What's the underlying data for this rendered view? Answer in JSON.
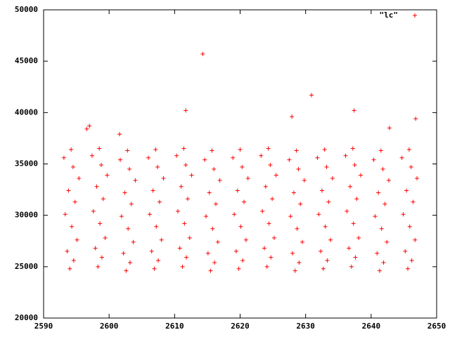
{
  "chart_data": {
    "type": "scatter",
    "x": [
      2594.0,
      2594.6,
      2593.6,
      2595.1,
      2594.3,
      2593.3,
      2594.8,
      2593.8,
      2595.4,
      2594.5,
      2593.1,
      2594.2,
      2598.3,
      2598.9,
      2597.9,
      2599.4,
      2598.6,
      2597.6,
      2599.1,
      2598.1,
      2599.7,
      2598.8,
      2597.4,
      2598.5,
      2602.6,
      2603.2,
      2602.2,
      2603.7,
      2602.9,
      2601.9,
      2603.4,
      2602.4,
      2604.0,
      2603.1,
      2601.7,
      2602.8,
      2606.9,
      2607.5,
      2606.5,
      2608.0,
      2607.2,
      2606.2,
      2607.7,
      2606.7,
      2608.3,
      2607.4,
      2606.0,
      2607.1,
      2611.2,
      2611.8,
      2610.8,
      2612.3,
      2611.5,
      2610.5,
      2612.0,
      2611.0,
      2612.6,
      2611.7,
      2610.3,
      2611.4,
      2615.5,
      2616.1,
      2615.1,
      2616.6,
      2615.8,
      2614.8,
      2616.3,
      2615.3,
      2616.9,
      2616.0,
      2614.6,
      2615.7,
      2619.8,
      2620.4,
      2619.4,
      2620.9,
      2620.1,
      2619.1,
      2620.6,
      2619.6,
      2621.2,
      2620.3,
      2618.9,
      2620.0,
      2624.1,
      2624.7,
      2623.7,
      2625.2,
      2624.4,
      2623.4,
      2624.9,
      2623.9,
      2625.5,
      2624.6,
      2623.2,
      2624.3,
      2628.4,
      2629.0,
      2628.0,
      2629.5,
      2628.7,
      2627.7,
      2629.2,
      2628.2,
      2629.8,
      2628.9,
      2627.5,
      2628.6,
      2632.7,
      2633.3,
      2632.3,
      2633.8,
      2633.0,
      2632.0,
      2633.5,
      2632.5,
      2634.1,
      2633.2,
      2631.8,
      2632.9,
      2637.0,
      2637.6,
      2636.6,
      2638.1,
      2637.3,
      2636.3,
      2637.8,
      2636.8,
      2638.4,
      2637.5,
      2636.1,
      2637.2,
      2641.3,
      2641.9,
      2640.9,
      2642.4,
      2641.6,
      2640.6,
      2642.1,
      2641.1,
      2642.7,
      2641.8,
      2640.4,
      2641.5,
      2645.6,
      2646.2,
      2645.2,
      2646.7,
      2645.9,
      2644.9,
      2646.4,
      2645.4,
      2647.0,
      2646.1,
      2644.7,
      2645.8,
      2614.3,
      2611.7,
      2630.9,
      2627.9,
      2637.4,
      2646.8,
      2642.8,
      2596.6,
      2597.0,
      2601.6
    ],
    "series": [
      {
        "name": "\"lc\"",
        "color": "#ff0000",
        "values": [
          24800,
          25600,
          26500,
          27600,
          28900,
          30100,
          31300,
          32400,
          33600,
          34700,
          35600,
          36400,
          25000,
          25900,
          26800,
          27800,
          29200,
          30400,
          31600,
          32800,
          33900,
          34900,
          35800,
          36500,
          24600,
          25400,
          26300,
          27400,
          28700,
          29900,
          31100,
          32200,
          33400,
          34500,
          35400,
          36300,
          24800,
          25600,
          26500,
          27600,
          28900,
          30100,
          31300,
          32400,
          33600,
          34700,
          35600,
          36400,
          25000,
          25900,
          26800,
          27800,
          29200,
          30400,
          31600,
          32800,
          33900,
          34900,
          35800,
          36500,
          24600,
          25400,
          26300,
          27400,
          28700,
          29900,
          31100,
          32200,
          33400,
          34500,
          35400,
          36300,
          24800,
          25600,
          26500,
          27600,
          28900,
          30100,
          31300,
          32400,
          33600,
          34700,
          35600,
          36400,
          25000,
          25900,
          26800,
          27800,
          29200,
          30400,
          31600,
          32800,
          33900,
          34900,
          35800,
          36500,
          24600,
          25400,
          26300,
          27400,
          28700,
          29900,
          31100,
          32200,
          33400,
          34500,
          35400,
          36300,
          24800,
          25600,
          26500,
          27600,
          28900,
          30100,
          31300,
          32400,
          33600,
          34700,
          35600,
          36400,
          25000,
          25900,
          26800,
          27800,
          29200,
          30400,
          31600,
          32800,
          33900,
          34900,
          35800,
          36500,
          24600,
          25400,
          26300,
          27400,
          28700,
          29900,
          31100,
          32200,
          33400,
          34500,
          35400,
          36300,
          24800,
          25600,
          26500,
          27600,
          28900,
          30100,
          31300,
          32400,
          33600,
          34700,
          35600,
          36400,
          45700,
          40200,
          41700,
          39600,
          40200,
          39400,
          38500,
          38400,
          38700,
          37900
        ]
      }
    ],
    "xlim": [
      2590,
      2650
    ],
    "xticks": [
      2590,
      2600,
      2610,
      2620,
      2630,
      2640,
      2650
    ],
    "ylim": [
      20000,
      50000
    ],
    "yticks": [
      20000,
      25000,
      30000,
      35000,
      40000,
      45000,
      50000
    ],
    "grid": false,
    "legend": "top-right"
  }
}
